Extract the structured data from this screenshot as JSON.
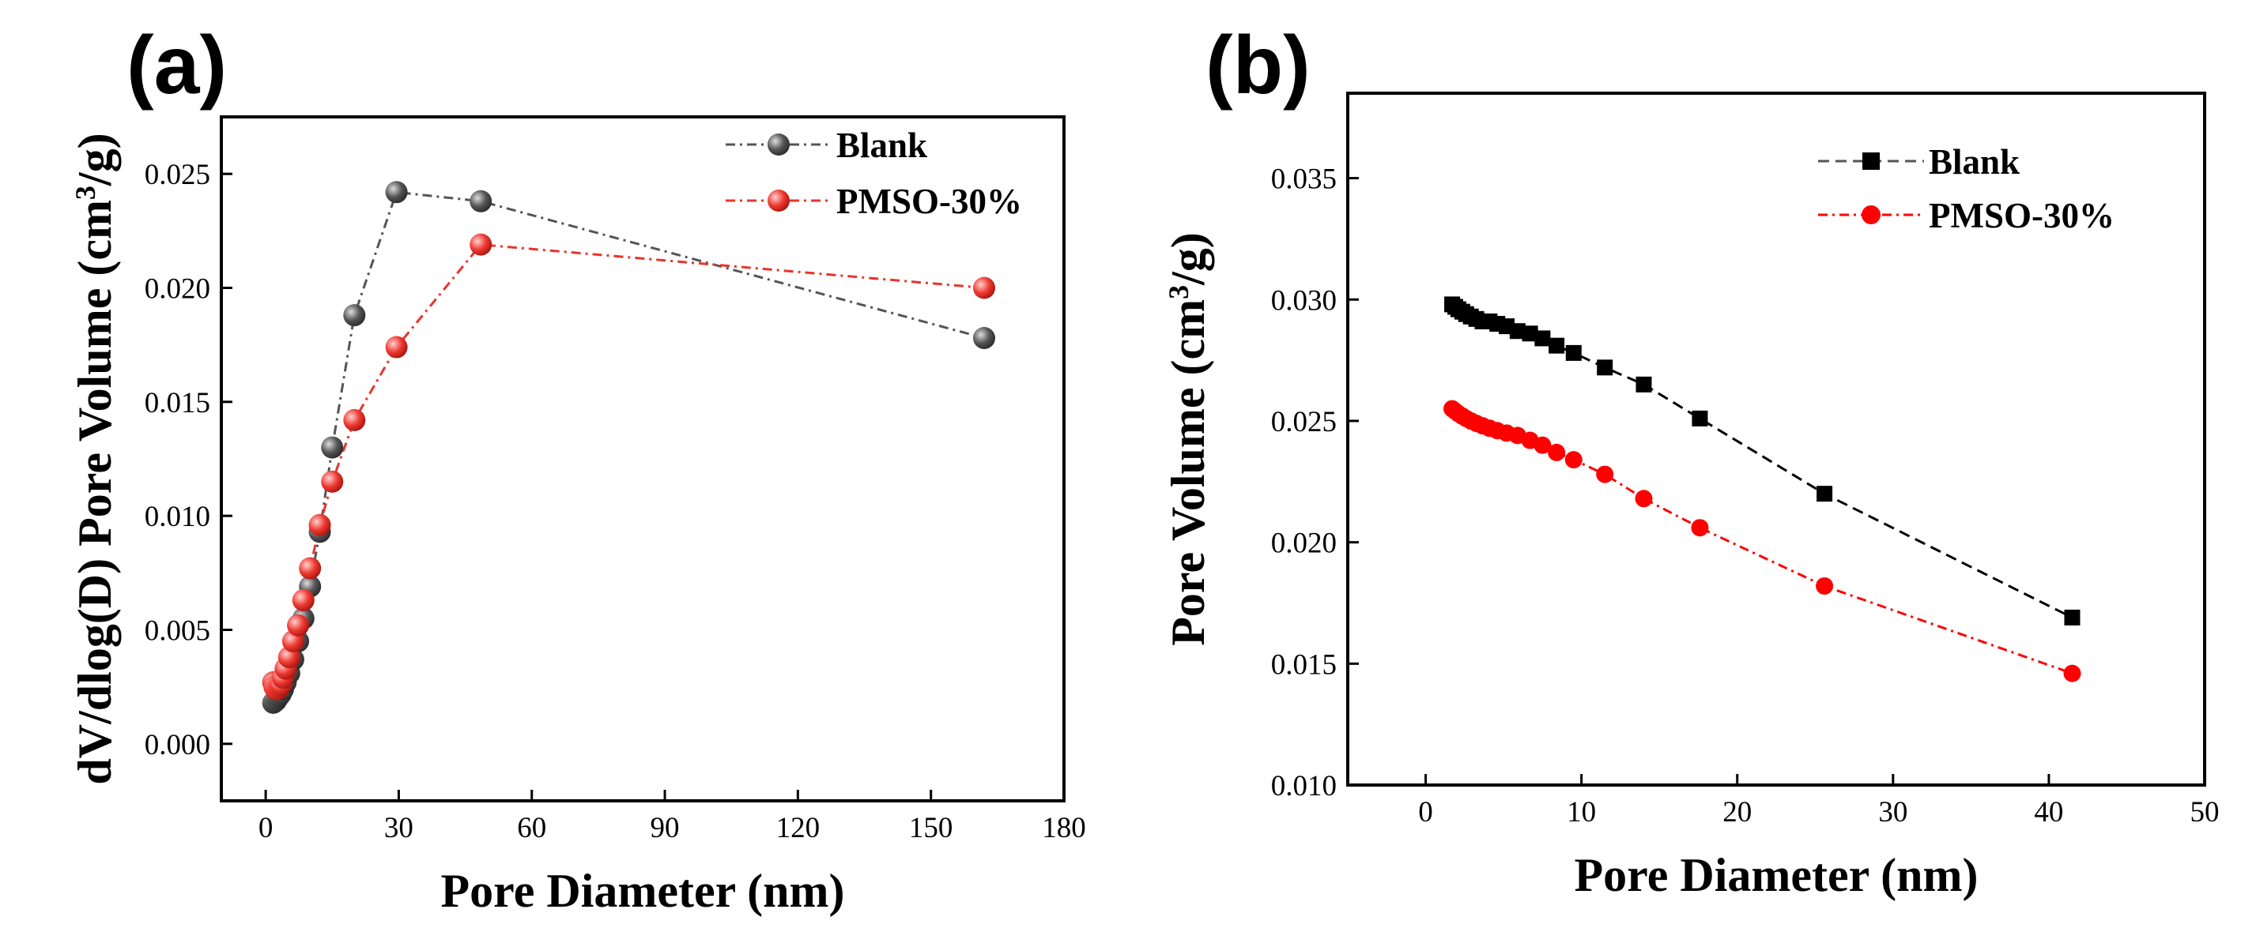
{
  "chart_data": [
    {
      "panel": "(a)",
      "type": "line",
      "xlabel": "Pore Diameter (nm)",
      "ylabel_main": "dV/dlog(D) Pore Volume (cm",
      "ylabel_sup": "3",
      "ylabel_tail": "/g)",
      "xlim": [
        -10,
        180
      ],
      "ylim": [
        -0.0025,
        0.0275
      ],
      "xticks": [
        0,
        30,
        60,
        90,
        120,
        150,
        180
      ],
      "xtick_labels": [
        "0",
        "30",
        "60",
        "90",
        "120",
        "150",
        "180"
      ],
      "yticks": [
        0.0,
        0.005,
        0.01,
        0.015,
        0.02,
        0.025
      ],
      "ytick_labels": [
        "0.000",
        "0.005",
        "0.010",
        "0.015",
        "0.020",
        "0.025"
      ],
      "legend_position": "top-right",
      "series": [
        {
          "name": "Blank",
          "color": "#555555",
          "marker": "sphere",
          "line": "dash-dot",
          "x": [
            1.7,
            2.0,
            2.3,
            2.6,
            3.0,
            3.4,
            3.9,
            4.5,
            5.3,
            6.2,
            7.3,
            8.5,
            10.0,
            12.2,
            15.0,
            20.0,
            29.5,
            48.5,
            162.0
          ],
          "y": [
            0.0018,
            0.00185,
            0.0019,
            0.002,
            0.0021,
            0.0022,
            0.0024,
            0.0027,
            0.0031,
            0.0037,
            0.0045,
            0.0055,
            0.0069,
            0.0093,
            0.013,
            0.0188,
            0.0242,
            0.0238,
            0.0178
          ]
        },
        {
          "name": "PMSO-30%",
          "color": "#e8342c",
          "marker": "sphere",
          "line": "dash-dot",
          "x": [
            1.7,
            2.0,
            2.3,
            2.6,
            3.0,
            3.4,
            3.9,
            4.5,
            5.3,
            6.2,
            7.3,
            8.5,
            10.0,
            12.2,
            15.0,
            20.0,
            29.5,
            48.5,
            162.0
          ],
          "y": [
            0.0027,
            0.0025,
            0.0024,
            0.0024,
            0.0025,
            0.0026,
            0.0029,
            0.0033,
            0.0038,
            0.0045,
            0.0052,
            0.0063,
            0.0077,
            0.0096,
            0.0115,
            0.0142,
            0.0174,
            0.0219,
            0.02
          ]
        }
      ]
    },
    {
      "panel": "(b)",
      "type": "line",
      "xlabel": "Pore Diameter (nm)",
      "ylabel_main": "Pore Volume (cm",
      "ylabel_sup": "3",
      "ylabel_tail": "/g)",
      "xlim": [
        -5,
        50
      ],
      "ylim": [
        0.01,
        0.0385
      ],
      "xticks": [
        0,
        10,
        20,
        30,
        40,
        50
      ],
      "xtick_labels": [
        "0",
        "10",
        "20",
        "30",
        "40",
        "50"
      ],
      "yticks": [
        0.01,
        0.015,
        0.02,
        0.025,
        0.03,
        0.035
      ],
      "ytick_labels": [
        "0.010",
        "0.015",
        "0.020",
        "0.025",
        "0.030",
        "0.035"
      ],
      "legend_position": "top-right",
      "series": [
        {
          "name": "Blank",
          "color": "#000000",
          "marker": "square",
          "line": "dash",
          "x": [
            1.7,
            1.9,
            2.1,
            2.35,
            2.6,
            2.9,
            3.25,
            3.65,
            4.1,
            4.6,
            5.2,
            5.9,
            6.7,
            7.5,
            8.4,
            9.5,
            11.5,
            14.0,
            17.6,
            25.6,
            41.5
          ],
          "y": [
            0.0298,
            0.0297,
            0.0296,
            0.0295,
            0.0294,
            0.0293,
            0.0292,
            0.0291,
            0.0291,
            0.029,
            0.0289,
            0.0287,
            0.0286,
            0.0284,
            0.0281,
            0.0278,
            0.0272,
            0.0265,
            0.0251,
            0.022,
            0.0169
          ]
        },
        {
          "name": "PMSO-30%",
          "color": "#ff0000",
          "marker": "circle",
          "line": "dash-dot",
          "x": [
            1.7,
            1.9,
            2.1,
            2.35,
            2.6,
            2.9,
            3.25,
            3.65,
            4.1,
            4.6,
            5.2,
            5.9,
            6.7,
            7.5,
            8.4,
            9.5,
            11.5,
            14.0,
            17.6,
            25.6,
            41.5
          ],
          "y": [
            0.0255,
            0.0254,
            0.0253,
            0.0252,
            0.0251,
            0.025,
            0.0249,
            0.0248,
            0.0247,
            0.0246,
            0.0245,
            0.0244,
            0.0242,
            0.024,
            0.0237,
            0.0234,
            0.0228,
            0.0218,
            0.0206,
            0.0182,
            0.0146
          ]
        }
      ]
    }
  ]
}
